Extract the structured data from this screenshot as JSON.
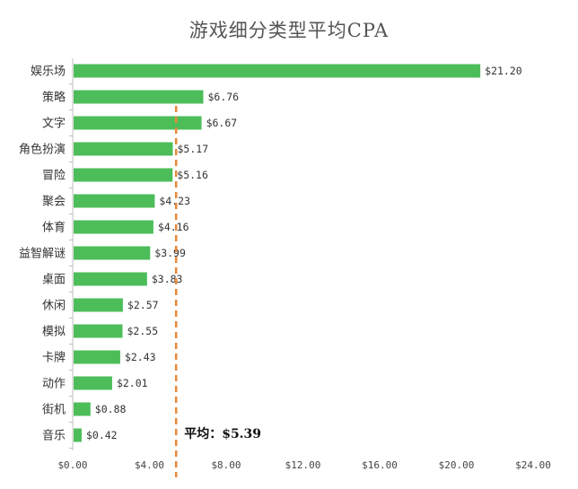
{
  "chart_data": {
    "type": "bar",
    "orientation": "horizontal",
    "title": "游戏细分类型平均CPA",
    "categories": [
      "娱乐场",
      "策略",
      "文字",
      "角色扮演",
      "冒险",
      "聚会",
      "体育",
      "益智解谜",
      "桌面",
      "休闲",
      "模拟",
      "卡牌",
      "动作",
      "街机",
      "音乐"
    ],
    "values": [
      21.2,
      6.76,
      6.67,
      5.17,
      5.16,
      4.23,
      4.16,
      3.99,
      3.83,
      2.57,
      2.55,
      2.43,
      2.01,
      0.88,
      0.42
    ],
    "value_labels": [
      "$21.20",
      "$6.76",
      "$6.67",
      "$5.17",
      "$5.16",
      "$4.23",
      "$4.16",
      "$3.99",
      "$3.83",
      "$2.57",
      "$2.55",
      "$2.43",
      "$2.01",
      "$0.88",
      "$0.42"
    ],
    "xlim": [
      0,
      24
    ],
    "x_ticks": [
      0,
      4,
      8,
      12,
      16,
      20,
      24
    ],
    "x_tick_labels": [
      "$0.00",
      "$4.00",
      "$8.00",
      "$12.00",
      "$16.00",
      "$20.00",
      "$24.00"
    ],
    "average": {
      "value": 5.39,
      "label": "平均：$5.39"
    },
    "colors": {
      "bar": "#4dbd5a",
      "average_line": "#e8893a",
      "axis": "#bfbfbf",
      "title": "#555555"
    },
    "grid": false
  }
}
